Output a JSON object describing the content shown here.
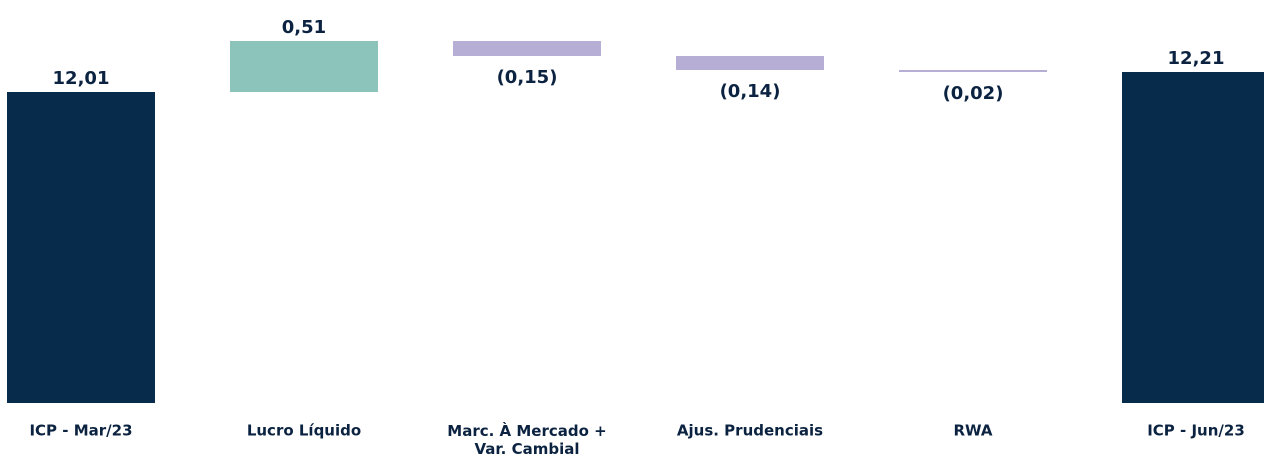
{
  "chart_data": {
    "type": "waterfall",
    "categories": [
      "ICP - Mar/23",
      "Lucro Líquido",
      "Marc. À Mercado +\nVar. Cambial",
      "Ajus. Prudenciais",
      "RWA",
      "ICP - Jun/23"
    ],
    "values": [
      12.01,
      0.51,
      -0.15,
      -0.14,
      -0.02,
      12.21
    ],
    "value_labels": [
      "12,01",
      "0,51",
      "(0,15)",
      "(0,14)",
      "(0,02)",
      "12,21"
    ],
    "measures": [
      "total",
      "relative",
      "relative",
      "relative",
      "relative",
      "total"
    ],
    "colors": {
      "total": "#072b4b",
      "increase": "#8cc4bc",
      "decrease": "#b7aed6"
    },
    "ylim": [
      8.9,
      12.9
    ]
  }
}
